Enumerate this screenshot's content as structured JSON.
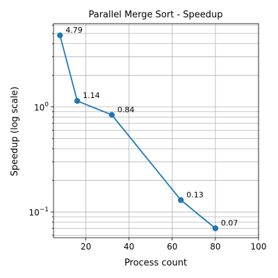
{
  "chart_data": {
    "type": "line",
    "title": "Parallel Merge Sort - Speedup",
    "xlabel": "Process count",
    "ylabel": "Speedup (log scale)",
    "xlim": [
      5,
      100
    ],
    "ylim": [
      0.057,
      6.2
    ],
    "yscale": "log",
    "grid": true,
    "x": [
      8,
      16,
      32,
      64,
      80
    ],
    "series": [
      {
        "values": [
          4.79,
          1.14,
          0.84,
          0.13,
          0.07
        ],
        "labels": [
          "4.79",
          "1.14",
          "0.84",
          "0.13",
          "0.07"
        ],
        "color": "#1f77b4"
      }
    ],
    "x_ticks": [
      {
        "value": 20,
        "label": "20"
      },
      {
        "value": 40,
        "label": "40"
      },
      {
        "value": 60,
        "label": "60"
      },
      {
        "value": 80,
        "label": "80"
      },
      {
        "value": 100,
        "label": "100"
      }
    ],
    "y_major_ticks": [
      {
        "value": 0.1,
        "base": "10",
        "exp": "−1"
      },
      {
        "value": 1,
        "base": "10",
        "exp": "0"
      }
    ],
    "y_minor_ticks": [
      0.06,
      0.07,
      0.08,
      0.09,
      0.2,
      0.3,
      0.4,
      0.5,
      0.6,
      0.7,
      0.8,
      0.9,
      2,
      3,
      4,
      5,
      6
    ]
  }
}
